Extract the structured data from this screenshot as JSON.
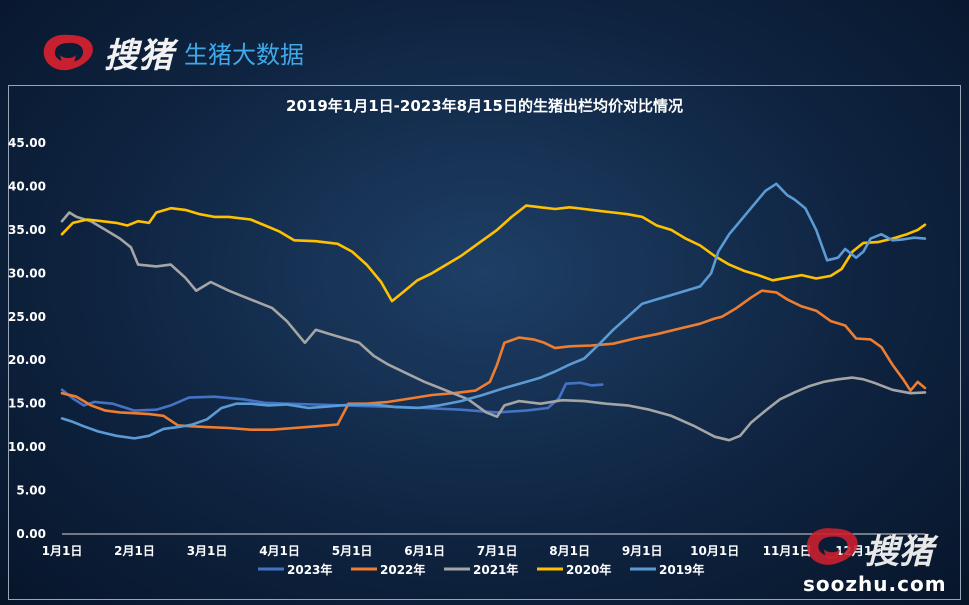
{
  "brand": {
    "name": "搜猪",
    "subtitle": "生猪大数据",
    "logo_icon": "brand-logo-icon"
  },
  "watermark": {
    "name": "搜猪",
    "url": "soozhu.com"
  },
  "colors": {
    "2023": "#4472c4",
    "2022": "#ed7d31",
    "2021": "#a5a5a5",
    "2020": "#ffc000",
    "2019": "#5b9bd5",
    "axis_text": "#ffffff",
    "logo_red": "#c8202f"
  },
  "chart_data": {
    "type": "line",
    "title": "2019年1月1日-2023年8月15日的生猪出栏均价对比情况",
    "xlabel": "",
    "ylabel": "",
    "ylim": [
      0,
      45
    ],
    "yticks": [
      "0.00",
      "5.00",
      "10.00",
      "15.00",
      "20.00",
      "25.00",
      "30.00",
      "35.00",
      "40.00",
      "45.00"
    ],
    "x_range_month": [
      1,
      12.9
    ],
    "xticks": [
      {
        "label": "1月1日",
        "m": 1
      },
      {
        "label": "2月1日",
        "m": 2
      },
      {
        "label": "3月1日",
        "m": 3
      },
      {
        "label": "4月1日",
        "m": 4
      },
      {
        "label": "5月1日",
        "m": 5
      },
      {
        "label": "6月1日",
        "m": 6
      },
      {
        "label": "7月1日",
        "m": 7
      },
      {
        "label": "8月1日",
        "m": 8
      },
      {
        "label": "9月1日",
        "m": 9
      },
      {
        "label": "10月1日",
        "m": 10
      },
      {
        "label": "11月1日",
        "m": 11
      },
      {
        "label": "12月1日",
        "m": 12
      }
    ],
    "grid": false,
    "legend_position": "bottom",
    "series": [
      {
        "name": "2023年",
        "key": "2023",
        "points": [
          [
            1,
            16.6
          ],
          [
            1.15,
            15.6
          ],
          [
            1.3,
            14.8
          ],
          [
            1.45,
            15.2
          ],
          [
            1.7,
            15.0
          ],
          [
            2.0,
            14.2
          ],
          [
            2.3,
            14.3
          ],
          [
            2.5,
            14.8
          ],
          [
            2.75,
            15.7
          ],
          [
            3.1,
            15.8
          ],
          [
            3.5,
            15.5
          ],
          [
            3.8,
            15.1
          ],
          [
            4.1,
            15.0
          ],
          [
            4.5,
            14.9
          ],
          [
            4.9,
            14.8
          ],
          [
            5.3,
            14.7
          ],
          [
            5.7,
            14.6
          ],
          [
            6.0,
            14.5
          ],
          [
            6.5,
            14.3
          ],
          [
            7.0,
            14.0
          ],
          [
            7.4,
            14.2
          ],
          [
            7.7,
            14.5
          ],
          [
            7.85,
            15.6
          ],
          [
            7.95,
            17.3
          ],
          [
            8.15,
            17.4
          ],
          [
            8.3,
            17.1
          ],
          [
            8.45,
            17.2
          ]
        ]
      },
      {
        "name": "2022年",
        "key": "2022",
        "points": [
          [
            1,
            16.2
          ],
          [
            1.2,
            15.8
          ],
          [
            1.4,
            14.8
          ],
          [
            1.6,
            14.2
          ],
          [
            1.8,
            14.0
          ],
          [
            2.0,
            13.9
          ],
          [
            2.2,
            13.8
          ],
          [
            2.4,
            13.6
          ],
          [
            2.6,
            12.5
          ],
          [
            2.8,
            12.4
          ],
          [
            3.0,
            12.3
          ],
          [
            3.3,
            12.2
          ],
          [
            3.6,
            12.0
          ],
          [
            3.9,
            12.0
          ],
          [
            4.2,
            12.2
          ],
          [
            4.5,
            12.4
          ],
          [
            4.8,
            12.6
          ],
          [
            4.95,
            15.0
          ],
          [
            5.2,
            15.0
          ],
          [
            5.5,
            15.2
          ],
          [
            5.8,
            15.6
          ],
          [
            6.1,
            16.0
          ],
          [
            6.4,
            16.2
          ],
          [
            6.7,
            16.5
          ],
          [
            6.9,
            17.5
          ],
          [
            7.0,
            19.5
          ],
          [
            7.1,
            22.0
          ],
          [
            7.3,
            22.6
          ],
          [
            7.5,
            22.4
          ],
          [
            7.65,
            22.0
          ],
          [
            7.8,
            21.4
          ],
          [
            8.0,
            21.6
          ],
          [
            8.3,
            21.7
          ],
          [
            8.6,
            21.9
          ],
          [
            8.9,
            22.5
          ],
          [
            9.2,
            23.0
          ],
          [
            9.5,
            23.6
          ],
          [
            9.8,
            24.2
          ],
          [
            10.0,
            24.8
          ],
          [
            10.1,
            25.0
          ],
          [
            10.3,
            26.0
          ],
          [
            10.5,
            27.2
          ],
          [
            10.65,
            28.0
          ],
          [
            10.85,
            27.8
          ],
          [
            11.0,
            27.0
          ],
          [
            11.2,
            26.2
          ],
          [
            11.4,
            25.7
          ],
          [
            11.6,
            24.5
          ],
          [
            11.8,
            24.0
          ],
          [
            11.95,
            22.5
          ],
          [
            12.15,
            22.4
          ],
          [
            12.3,
            21.5
          ],
          [
            12.45,
            19.5
          ],
          [
            12.6,
            17.8
          ],
          [
            12.7,
            16.5
          ],
          [
            12.8,
            17.5
          ],
          [
            12.9,
            16.8
          ]
        ]
      },
      {
        "name": "2021年",
        "key": "2021",
        "points": [
          [
            1,
            36.0
          ],
          [
            1.1,
            37.0
          ],
          [
            1.2,
            36.5
          ],
          [
            1.4,
            36.0
          ],
          [
            1.6,
            35.0
          ],
          [
            1.8,
            34.0
          ],
          [
            1.95,
            33.0
          ],
          [
            2.05,
            31.0
          ],
          [
            2.3,
            30.8
          ],
          [
            2.5,
            31.0
          ],
          [
            2.7,
            29.5
          ],
          [
            2.85,
            28.0
          ],
          [
            3.05,
            29.0
          ],
          [
            3.3,
            28.0
          ],
          [
            3.6,
            27.0
          ],
          [
            3.9,
            26.0
          ],
          [
            4.1,
            24.5
          ],
          [
            4.35,
            22.0
          ],
          [
            4.5,
            23.5
          ],
          [
            4.7,
            23.0
          ],
          [
            4.9,
            22.5
          ],
          [
            5.1,
            22.0
          ],
          [
            5.3,
            20.5
          ],
          [
            5.5,
            19.5
          ],
          [
            5.75,
            18.5
          ],
          [
            6.0,
            17.5
          ],
          [
            6.3,
            16.5
          ],
          [
            6.6,
            15.5
          ],
          [
            6.85,
            14.0
          ],
          [
            7.0,
            13.5
          ],
          [
            7.1,
            14.8
          ],
          [
            7.3,
            15.3
          ],
          [
            7.6,
            15.0
          ],
          [
            7.9,
            15.4
          ],
          [
            8.2,
            15.3
          ],
          [
            8.5,
            15.0
          ],
          [
            8.8,
            14.8
          ],
          [
            9.1,
            14.3
          ],
          [
            9.4,
            13.6
          ],
          [
            9.7,
            12.5
          ],
          [
            10.0,
            11.2
          ],
          [
            10.2,
            10.8
          ],
          [
            10.35,
            11.3
          ],
          [
            10.5,
            12.8
          ],
          [
            10.7,
            14.2
          ],
          [
            10.9,
            15.5
          ],
          [
            11.1,
            16.3
          ],
          [
            11.3,
            17.0
          ],
          [
            11.5,
            17.5
          ],
          [
            11.7,
            17.8
          ],
          [
            11.9,
            18.0
          ],
          [
            12.05,
            17.8
          ],
          [
            12.2,
            17.4
          ],
          [
            12.45,
            16.6
          ],
          [
            12.7,
            16.2
          ],
          [
            12.9,
            16.3
          ]
        ]
      },
      {
        "name": "2020年",
        "key": "2020",
        "points": [
          [
            1,
            34.5
          ],
          [
            1.15,
            35.8
          ],
          [
            1.35,
            36.2
          ],
          [
            1.55,
            36.0
          ],
          [
            1.75,
            35.8
          ],
          [
            1.9,
            35.5
          ],
          [
            2.05,
            36.0
          ],
          [
            2.2,
            35.8
          ],
          [
            2.3,
            37.0
          ],
          [
            2.5,
            37.5
          ],
          [
            2.7,
            37.3
          ],
          [
            2.9,
            36.8
          ],
          [
            3.1,
            36.5
          ],
          [
            3.3,
            36.5
          ],
          [
            3.6,
            36.2
          ],
          [
            3.8,
            35.5
          ],
          [
            4.0,
            34.8
          ],
          [
            4.2,
            33.8
          ],
          [
            4.5,
            33.7
          ],
          [
            4.8,
            33.4
          ],
          [
            5.0,
            32.5
          ],
          [
            5.2,
            31.0
          ],
          [
            5.4,
            29.0
          ],
          [
            5.55,
            26.8
          ],
          [
            5.7,
            27.8
          ],
          [
            5.9,
            29.2
          ],
          [
            6.1,
            30.0
          ],
          [
            6.3,
            31.0
          ],
          [
            6.5,
            32.0
          ],
          [
            6.75,
            33.5
          ],
          [
            7.0,
            35.0
          ],
          [
            7.2,
            36.5
          ],
          [
            7.4,
            37.8
          ],
          [
            7.6,
            37.6
          ],
          [
            7.8,
            37.4
          ],
          [
            8.0,
            37.6
          ],
          [
            8.2,
            37.4
          ],
          [
            8.4,
            37.2
          ],
          [
            8.6,
            37.0
          ],
          [
            8.8,
            36.8
          ],
          [
            9.0,
            36.5
          ],
          [
            9.2,
            35.5
          ],
          [
            9.4,
            35.0
          ],
          [
            9.6,
            34.0
          ],
          [
            9.8,
            33.2
          ],
          [
            10.0,
            32.0
          ],
          [
            10.2,
            31.0
          ],
          [
            10.4,
            30.3
          ],
          [
            10.6,
            29.8
          ],
          [
            10.8,
            29.2
          ],
          [
            11.0,
            29.5
          ],
          [
            11.2,
            29.8
          ],
          [
            11.4,
            29.4
          ],
          [
            11.6,
            29.7
          ],
          [
            11.75,
            30.5
          ],
          [
            11.9,
            32.5
          ],
          [
            12.05,
            33.5
          ],
          [
            12.25,
            33.6
          ],
          [
            12.45,
            34.0
          ],
          [
            12.65,
            34.5
          ],
          [
            12.8,
            35.0
          ],
          [
            12.9,
            35.6
          ]
        ]
      },
      {
        "name": "2019年",
        "key": "2019",
        "points": [
          [
            1,
            13.3
          ],
          [
            1.15,
            12.9
          ],
          [
            1.3,
            12.4
          ],
          [
            1.5,
            11.8
          ],
          [
            1.75,
            11.3
          ],
          [
            2.0,
            11.0
          ],
          [
            2.2,
            11.3
          ],
          [
            2.4,
            12.1
          ],
          [
            2.6,
            12.3
          ],
          [
            2.8,
            12.6
          ],
          [
            3.0,
            13.2
          ],
          [
            3.2,
            14.5
          ],
          [
            3.4,
            15.0
          ],
          [
            3.6,
            15.0
          ],
          [
            3.85,
            14.8
          ],
          [
            4.1,
            14.9
          ],
          [
            4.4,
            14.5
          ],
          [
            4.7,
            14.7
          ],
          [
            5.0,
            14.9
          ],
          [
            5.3,
            14.9
          ],
          [
            5.6,
            14.6
          ],
          [
            5.9,
            14.5
          ],
          [
            6.2,
            14.8
          ],
          [
            6.5,
            15.3
          ],
          [
            6.8,
            16.0
          ],
          [
            7.1,
            16.8
          ],
          [
            7.4,
            17.5
          ],
          [
            7.6,
            18.0
          ],
          [
            7.8,
            18.7
          ],
          [
            8.0,
            19.5
          ],
          [
            8.2,
            20.2
          ],
          [
            8.4,
            21.8
          ],
          [
            8.6,
            23.5
          ],
          [
            8.8,
            25.0
          ],
          [
            9.0,
            26.5
          ],
          [
            9.2,
            27.0
          ],
          [
            9.4,
            27.5
          ],
          [
            9.6,
            28.0
          ],
          [
            9.8,
            28.5
          ],
          [
            9.95,
            30.0
          ],
          [
            10.05,
            32.5
          ],
          [
            10.2,
            34.5
          ],
          [
            10.35,
            36.0
          ],
          [
            10.55,
            38.0
          ],
          [
            10.7,
            39.5
          ],
          [
            10.85,
            40.3
          ],
          [
            11.0,
            39.0
          ],
          [
            11.1,
            38.5
          ],
          [
            11.25,
            37.5
          ],
          [
            11.4,
            35.0
          ],
          [
            11.55,
            31.5
          ],
          [
            11.7,
            31.8
          ],
          [
            11.8,
            32.8
          ],
          [
            11.95,
            31.8
          ],
          [
            12.05,
            32.5
          ],
          [
            12.15,
            34.0
          ],
          [
            12.3,
            34.5
          ],
          [
            12.45,
            33.8
          ],
          [
            12.6,
            33.9
          ],
          [
            12.75,
            34.1
          ],
          [
            12.9,
            34.0
          ]
        ]
      }
    ]
  }
}
